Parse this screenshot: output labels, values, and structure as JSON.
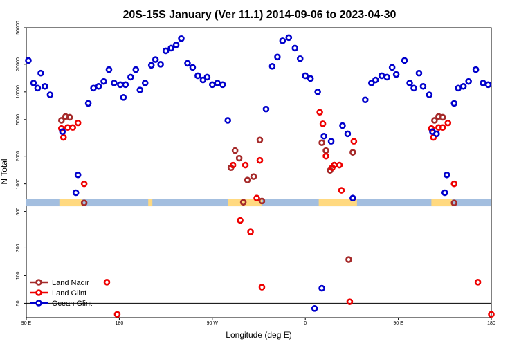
{
  "chart_data": {
    "type": "scatter",
    "title": "20S-15S January (Ver 11.1)   2014-09-06 to 2023-04-30",
    "xlabel": "Longitude (deg E)",
    "ylabel": "N Total",
    "x_scale": "longitude, from 90 E eastward through 180 to 180 (270 degrees span repeated)",
    "y_scale": "log",
    "xlim": [
      90,
      540
    ],
    "ylim": [
      35,
      50000
    ],
    "x_ticks": [
      {
        "value": 90,
        "label": "90 E"
      },
      {
        "value": 180,
        "label": "180"
      },
      {
        "value": 270,
        "label": "90 W"
      },
      {
        "value": 360,
        "label": "0"
      },
      {
        "value": 450,
        "label": "90 E"
      },
      {
        "value": 540,
        "label": "180"
      }
    ],
    "y_ticks": [
      {
        "value": 50,
        "label": "50"
      },
      {
        "value": 100,
        "label": "100"
      },
      {
        "value": 200,
        "label": "200"
      },
      {
        "value": 500,
        "label": "500"
      },
      {
        "value": 1000,
        "label": "1000"
      },
      {
        "value": 2000,
        "label": "2000"
      },
      {
        "value": 5000,
        "label": "5000"
      },
      {
        "value": 10000,
        "label": "10000"
      },
      {
        "value": 20000,
        "label": "20000"
      },
      {
        "value": 50000,
        "label": "50000"
      }
    ],
    "reference_line": 50,
    "surface_strip": {
      "y_range": [
        570,
        690
      ],
      "ocean_color": "#a3bedf",
      "land_color": "#ffd980",
      "land_segments": [
        [
          122,
          144
        ],
        [
          208,
          212
        ],
        [
          285,
          318
        ],
        [
          373,
          410
        ],
        [
          482,
          502
        ]
      ]
    },
    "legend": {
      "position": "bottom-left"
    },
    "series": [
      {
        "name": "Land Nadir",
        "color": "#a52a2a",
        "points": [
          [
            124,
            4900
          ],
          [
            128,
            5400
          ],
          [
            132,
            5300
          ],
          [
            146,
            620
          ],
          [
            288,
            1500
          ],
          [
            292,
            2300
          ],
          [
            296,
            1900
          ],
          [
            300,
            630
          ],
          [
            304,
            1100
          ],
          [
            310,
            1200
          ],
          [
            316,
            3000
          ],
          [
            318,
            650
          ],
          [
            376,
            2800
          ],
          [
            380,
            2300
          ],
          [
            384,
            1400
          ],
          [
            388,
            1600
          ],
          [
            402,
            150
          ],
          [
            406,
            2200
          ],
          [
            485,
            4900
          ],
          [
            489,
            5400
          ],
          [
            493,
            5300
          ],
          [
            504,
            620
          ]
        ]
      },
      {
        "name": "Land Glint",
        "color": "#ee0000",
        "points": [
          [
            124,
            4000
          ],
          [
            126,
            3200
          ],
          [
            130,
            4100
          ],
          [
            135,
            4100
          ],
          [
            140,
            4600
          ],
          [
            146,
            1000
          ],
          [
            168,
            85
          ],
          [
            178,
            38
          ],
          [
            290,
            1600
          ],
          [
            297,
            400
          ],
          [
            302,
            1600
          ],
          [
            307,
            300
          ],
          [
            313,
            700
          ],
          [
            316,
            1800
          ],
          [
            318,
            75
          ],
          [
            374,
            6000
          ],
          [
            377,
            4500
          ],
          [
            380,
            2000
          ],
          [
            386,
            1500
          ],
          [
            388,
            1600
          ],
          [
            393,
            1600
          ],
          [
            395,
            850
          ],
          [
            403,
            52
          ],
          [
            407,
            2900
          ],
          [
            482,
            4000
          ],
          [
            484,
            3200
          ],
          [
            489,
            4100
          ],
          [
            493,
            4100
          ],
          [
            498,
            4600
          ],
          [
            504,
            1000
          ],
          [
            527,
            85
          ],
          [
            540,
            38
          ]
        ]
      },
      {
        "name": "Ocean Glint",
        "color": "#0000cc",
        "points": [
          [
            92,
            22000
          ],
          [
            97,
            12500
          ],
          [
            101,
            11000
          ],
          [
            104,
            16000
          ],
          [
            108,
            11500
          ],
          [
            113,
            9300
          ],
          [
            125,
            3700
          ],
          [
            138,
            800
          ],
          [
            140,
            1250
          ],
          [
            150,
            7500
          ],
          [
            155,
            11000
          ],
          [
            160,
            11500
          ],
          [
            165,
            13000
          ],
          [
            170,
            17500
          ],
          [
            175,
            12500
          ],
          [
            181,
            12000
          ],
          [
            184,
            8700
          ],
          [
            186,
            12000
          ],
          [
            191,
            14500
          ],
          [
            196,
            17500
          ],
          [
            200,
            10500
          ],
          [
            205,
            12500
          ],
          [
            211,
            19500
          ],
          [
            215,
            22500
          ],
          [
            220,
            20000
          ],
          [
            225,
            28000
          ],
          [
            230,
            30000
          ],
          [
            235,
            32500
          ],
          [
            240,
            38000
          ],
          [
            246,
            20500
          ],
          [
            251,
            18500
          ],
          [
            256,
            15000
          ],
          [
            261,
            13500
          ],
          [
            265,
            14500
          ],
          [
            270,
            12000
          ],
          [
            275,
            12500
          ],
          [
            280,
            12000
          ],
          [
            285,
            4900
          ],
          [
            322,
            6500
          ],
          [
            328,
            19000
          ],
          [
            333,
            24000
          ],
          [
            338,
            36000
          ],
          [
            344,
            39000
          ],
          [
            350,
            30000
          ],
          [
            355,
            23000
          ],
          [
            360,
            15000
          ],
          [
            365,
            14000
          ],
          [
            372,
            10000
          ],
          [
            378,
            3300
          ],
          [
            385,
            2900
          ],
          [
            396,
            4300
          ],
          [
            401,
            3500
          ],
          [
            418,
            8200
          ],
          [
            424,
            12500
          ],
          [
            428,
            13500
          ],
          [
            434,
            15000
          ],
          [
            439,
            14500
          ],
          [
            444,
            18500
          ],
          [
            448,
            15500
          ],
          [
            456,
            22000
          ],
          [
            461,
            12500
          ],
          [
            465,
            11000
          ],
          [
            470,
            16000
          ],
          [
            474,
            11500
          ],
          [
            480,
            9300
          ],
          [
            483,
            3700
          ],
          [
            487,
            3500
          ],
          [
            495,
            800
          ],
          [
            497,
            1250
          ],
          [
            504,
            7500
          ],
          [
            508,
            11000
          ],
          [
            513,
            11500
          ],
          [
            518,
            13000
          ],
          [
            525,
            17500
          ],
          [
            532,
            12500
          ],
          [
            537,
            12000
          ],
          [
            369,
            44
          ],
          [
            376,
            73
          ],
          [
            406,
            700
          ]
        ]
      }
    ]
  }
}
